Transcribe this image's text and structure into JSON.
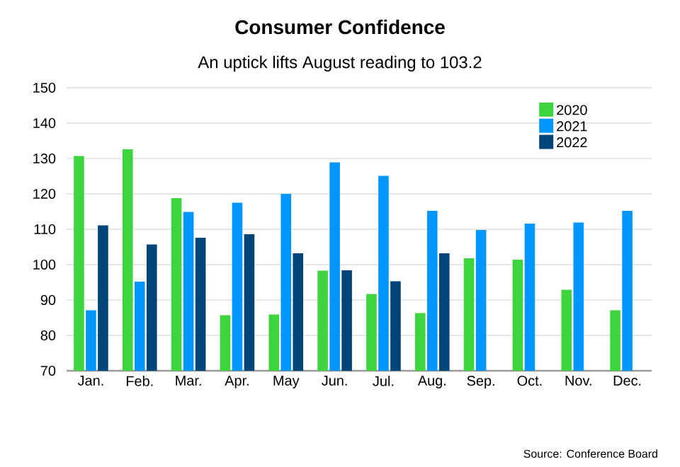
{
  "chart_data": {
    "type": "bar",
    "title": "Consumer Confidence",
    "subtitle": "An uptick lifts August reading to 103.2",
    "categories": [
      "Jan.",
      "Feb.",
      "Mar.",
      "Apr.",
      "May",
      "Jun.",
      "Jul.",
      "Aug.",
      "Sep.",
      "Oct.",
      "Nov.",
      "Dec."
    ],
    "series": [
      {
        "name": "2020",
        "color": "#3ed43e",
        "values": [
          130.7,
          132.6,
          118.8,
          85.7,
          85.9,
          98.3,
          91.7,
          86.3,
          101.8,
          101.4,
          92.9,
          87.1
        ]
      },
      {
        "name": "2021",
        "color": "#0096ff",
        "values": [
          87.1,
          95.2,
          114.9,
          117.5,
          120.0,
          128.9,
          125.1,
          115.2,
          109.8,
          111.6,
          111.9,
          115.2
        ]
      },
      {
        "name": "2022",
        "color": "#004478",
        "values": [
          111.1,
          105.7,
          107.6,
          108.6,
          103.2,
          98.4,
          95.3,
          103.2,
          null,
          null,
          null,
          null
        ]
      }
    ],
    "ylim": [
      70,
      150
    ],
    "yticks": [
      70,
      80,
      90,
      100,
      110,
      120,
      130,
      140,
      150
    ],
    "grid": "y",
    "legend": "top right",
    "annotations": [
      "Source: Conference Board"
    ]
  }
}
